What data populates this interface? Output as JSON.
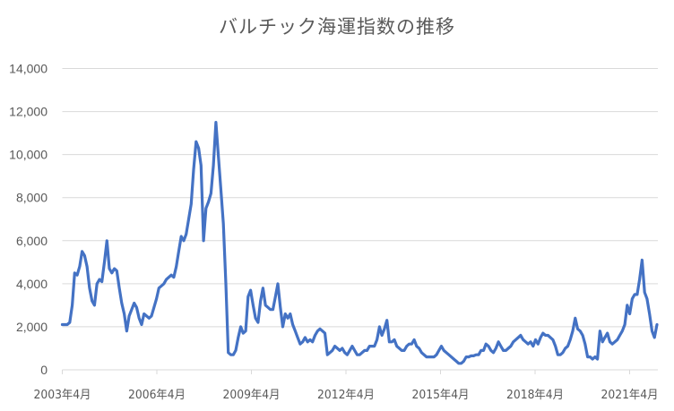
{
  "chart_data": {
    "type": "line",
    "title": "バルチック海運指数の推移",
    "xlabel": "",
    "ylabel": "",
    "ylim": [
      0,
      14000
    ],
    "yticks": [
      0,
      2000,
      4000,
      6000,
      8000,
      10000,
      12000,
      14000
    ],
    "ytick_labels": [
      "0",
      "2,000",
      "4,000",
      "6,000",
      "8,000",
      "10,000",
      "12,000",
      "14,000"
    ],
    "xtick_labels": [
      "2003年4月",
      "2006年4月",
      "2009年4月",
      "2012年4月",
      "2015年4月",
      "2018年4月",
      "2021年4月"
    ],
    "grid": "horizontal",
    "legend": "none",
    "line_color": "#4472C4",
    "x_start": "2003年4月",
    "x_step": "1 month",
    "series": [
      {
        "name": "バルチック海運指数",
        "values": [
          2100,
          2100,
          2100,
          2200,
          3000,
          4500,
          4400,
          4800,
          5500,
          5300,
          4800,
          3800,
          3200,
          3000,
          4000,
          4200,
          4100,
          5000,
          6000,
          4700,
          4500,
          4700,
          4600,
          3800,
          3100,
          2600,
          1800,
          2500,
          2800,
          3100,
          2900,
          2400,
          2100,
          2600,
          2500,
          2400,
          2500,
          2900,
          3300,
          3800,
          3900,
          4000,
          4200,
          4300,
          4400,
          4300,
          4800,
          5500,
          6200,
          6000,
          6300,
          7000,
          7700,
          9300,
          10600,
          10300,
          9500,
          6000,
          7500,
          7800,
          8200,
          9500,
          11500,
          9900,
          8400,
          6800,
          4000,
          800,
          700,
          700,
          900,
          1500,
          2000,
          1700,
          1800,
          3400,
          3700,
          3000,
          2400,
          2200,
          3200,
          3800,
          3000,
          2900,
          2800,
          2800,
          3400,
          4000,
          2900,
          2000,
          2600,
          2400,
          2600,
          2100,
          1800,
          1500,
          1200,
          1300,
          1500,
          1300,
          1400,
          1300,
          1600,
          1800,
          1900,
          1800,
          1700,
          700,
          800,
          900,
          1100,
          1000,
          900,
          1000,
          800,
          700,
          900,
          1100,
          900,
          700,
          700,
          800,
          900,
          900,
          1100,
          1100,
          1100,
          1400,
          2000,
          1600,
          1900,
          2300,
          1300,
          1300,
          1400,
          1100,
          1000,
          900,
          900,
          1100,
          1200,
          1200,
          1400,
          1100,
          1000,
          800,
          700,
          600,
          600,
          600,
          600,
          700,
          900,
          1100,
          900,
          800,
          700,
          600,
          500,
          400,
          300,
          300,
          400,
          600,
          600,
          650,
          650,
          700,
          700,
          900,
          900,
          1200,
          1100,
          900,
          800,
          1000,
          1300,
          1100,
          900,
          900,
          1000,
          1100,
          1300,
          1400,
          1500,
          1600,
          1400,
          1300,
          1200,
          1300,
          1100,
          1400,
          1200,
          1500,
          1700,
          1600,
          1600,
          1500,
          1400,
          1100,
          700,
          700,
          800,
          1000,
          1100,
          1400,
          1800,
          2400,
          1900,
          1800,
          1600,
          1200,
          600,
          600,
          500,
          600,
          500,
          1800,
          1300,
          1500,
          1700,
          1300,
          1200,
          1300,
          1400,
          1600,
          1800,
          2100,
          3000,
          2600,
          3300,
          3500,
          3500,
          4200,
          5100,
          3600,
          3300,
          2600,
          1800,
          1500,
          2100
        ]
      }
    ]
  }
}
